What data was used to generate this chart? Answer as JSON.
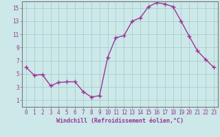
{
  "x": [
    0,
    1,
    2,
    3,
    4,
    5,
    6,
    7,
    8,
    9,
    10,
    11,
    12,
    13,
    14,
    15,
    16,
    17,
    18,
    19,
    20,
    21,
    22,
    23
  ],
  "y": [
    6.0,
    4.8,
    4.9,
    3.2,
    3.7,
    3.8,
    3.8,
    2.3,
    1.5,
    1.7,
    7.5,
    10.5,
    10.8,
    13.0,
    13.5,
    15.2,
    15.8,
    15.6,
    15.2,
    13.0,
    10.7,
    8.5,
    7.2,
    6.0
  ],
  "line_color": "#993399",
  "marker": "+",
  "marker_size": 4,
  "bg_color": "#cce8e8",
  "grid_color": "#aacece",
  "xlabel": "Windchill (Refroidissement éolien,°C)",
  "xlim_min": -0.5,
  "xlim_max": 23.5,
  "ylim_min": 0,
  "ylim_max": 16,
  "yticks": [
    1,
    3,
    5,
    7,
    9,
    11,
    13,
    15
  ],
  "xticks": [
    0,
    1,
    2,
    3,
    4,
    5,
    6,
    7,
    8,
    9,
    10,
    11,
    12,
    13,
    14,
    15,
    16,
    17,
    18,
    19,
    20,
    21,
    22,
    23
  ],
  "tick_color": "#993399",
  "label_color": "#993399",
  "spine_color": "#777777",
  "font_size": 5.5,
  "xlabel_fontsize": 6.0,
  "linewidth": 1.0
}
